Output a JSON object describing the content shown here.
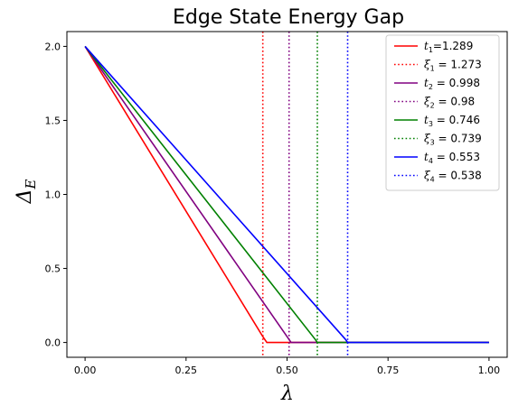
{
  "chart_data": {
    "type": "line",
    "title": "Edge State Energy Gap",
    "xlabel": "λ",
    "ylabel_main": "Δ",
    "ylabel_sub": "E",
    "xlim": [
      -0.045,
      1.045
    ],
    "ylim": [
      -0.1,
      2.1
    ],
    "x_ticks": [
      0.0,
      0.25,
      0.5,
      0.75,
      1.0
    ],
    "x_tick_labels": [
      "0.00",
      "0.25",
      "0.50",
      "0.75",
      "1.00"
    ],
    "y_ticks": [
      0.0,
      0.5,
      1.0,
      1.5,
      2.0
    ],
    "y_tick_labels": [
      "0.0",
      "0.5",
      "1.0",
      "1.5",
      "2.0"
    ],
    "grid": false,
    "legend_position": "upper-right",
    "series": [
      {
        "name": "t1=1.289",
        "label_var": "t",
        "label_sub": "1",
        "label_rest": "=1.289",
        "color": "#ff0000",
        "style": "solid",
        "x": [
          0.0,
          0.44,
          0.45,
          1.0
        ],
        "y": [
          2.0,
          0.04,
          0.0,
          0.0
        ]
      },
      {
        "name": "ξ1 = 1.273",
        "label_var": "ξ",
        "label_sub": "1",
        "label_rest": " = 1.273",
        "color": "#ff0000",
        "style": "dotted",
        "vline_x": 0.44
      },
      {
        "name": "t2 = 0.998",
        "label_var": "t",
        "label_sub": "2",
        "label_rest": " = 0.998",
        "color": "#800080",
        "style": "solid",
        "x": [
          0.0,
          0.5,
          0.51,
          1.0
        ],
        "y": [
          2.0,
          0.04,
          0.0,
          0.0
        ]
      },
      {
        "name": "ξ2 = 0.98",
        "label_var": "ξ",
        "label_sub": "2",
        "label_rest": " = 0.98",
        "color": "#800080",
        "style": "dotted",
        "vline_x": 0.505
      },
      {
        "name": "t3 = 0.746",
        "label_var": "t",
        "label_sub": "3",
        "label_rest": " = 0.746",
        "color": "#008000",
        "style": "solid",
        "x": [
          0.0,
          0.57,
          0.575,
          1.0
        ],
        "y": [
          2.0,
          0.02,
          0.0,
          0.0
        ]
      },
      {
        "name": "ξ3 = 0.739",
        "label_var": "ξ",
        "label_sub": "3",
        "label_rest": " = 0.739",
        "color": "#008000",
        "style": "dotted",
        "vline_x": 0.575
      },
      {
        "name": "t4 = 0.553",
        "label_var": "t",
        "label_sub": "4",
        "label_rest": " = 0.553",
        "color": "#0000ff",
        "style": "solid",
        "x": [
          0.0,
          0.645,
          0.65,
          1.0
        ],
        "y": [
          2.0,
          0.02,
          0.0,
          0.0
        ]
      },
      {
        "name": "ξ4 = 0.538",
        "label_var": "ξ",
        "label_sub": "4",
        "label_rest": " = 0.538",
        "color": "#0000ff",
        "style": "dotted",
        "vline_x": 0.65
      }
    ]
  }
}
